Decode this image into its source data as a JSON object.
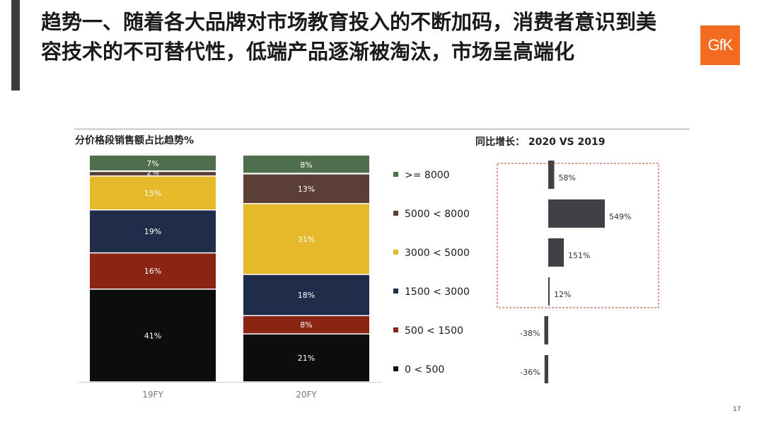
{
  "title": "趋势一、随着各大品牌对市场教育投入的不断加码，消费者意识到美容技术的不可替代性，低端产品逐渐被淘汰，市场呈高端化",
  "logo_text": "GfK",
  "page_number": "17",
  "colors": {
    "logo_bg": "#f26b21",
    "seg_ge8000": "#4e6e4e",
    "seg_5000_8000": "#5b3f36",
    "seg_3000_5000": "#e6b92b",
    "seg_1500_3000": "#1f2d4a",
    "seg_500_1500": "#8a2514",
    "seg_0_500": "#0d0d0d",
    "growth_bar": "#3f4146",
    "highlight_box": "#c0392b"
  },
  "chart_data": [
    {
      "type": "bar",
      "stacked": true,
      "title": "分价格段销售额占比趋势%",
      "categories": [
        "19FY",
        "20FY"
      ],
      "series": [
        {
          "name": "0 < 500",
          "values": [
            41,
            21
          ],
          "labels": [
            "41%",
            "21%"
          ],
          "color": "#0d0d0d"
        },
        {
          "name": "500 < 1500",
          "values": [
            16,
            8
          ],
          "labels": [
            "16%",
            "8%"
          ],
          "color": "#8a2514"
        },
        {
          "name": "1500 < 3000",
          "values": [
            19,
            18
          ],
          "labels": [
            "19%",
            "18%"
          ],
          "color": "#1f2d4a"
        },
        {
          "name": "3000 < 5000",
          "values": [
            15,
            31
          ],
          "labels": [
            "15%",
            "31%"
          ],
          "color": "#e6b92b"
        },
        {
          "name": "5000 < 8000",
          "values": [
            2,
            13
          ],
          "labels": [
            "2%",
            "13%"
          ],
          "color": "#5b3f36"
        },
        {
          "name": ">= 8000",
          "values": [
            7,
            8
          ],
          "labels": [
            "7%",
            "8%"
          ],
          "color": "#4e6e4e"
        }
      ],
      "legend": [
        ">= 8000",
        "5000 < 8000",
        "3000 < 5000",
        "1500 < 3000",
        "500 < 1500",
        "0 < 500"
      ],
      "legend_placement": "right",
      "ylim": [
        0,
        100
      ]
    },
    {
      "type": "bar",
      "orientation": "horizontal",
      "title": "同比增长： 2020 VS 2019",
      "categories": [
        ">= 8000",
        "5000 < 8000",
        "3000 < 5000",
        "1500 < 3000",
        "500 < 1500",
        "0 < 500"
      ],
      "values": [
        58,
        549,
        151,
        12,
        -38,
        -36
      ],
      "labels": [
        "58%",
        "549%",
        "151%",
        "12%",
        "-38%",
        "-36%"
      ],
      "highlighted": [
        ">= 8000",
        "5000 < 8000",
        "3000 < 5000",
        "1500 < 3000"
      ]
    }
  ]
}
